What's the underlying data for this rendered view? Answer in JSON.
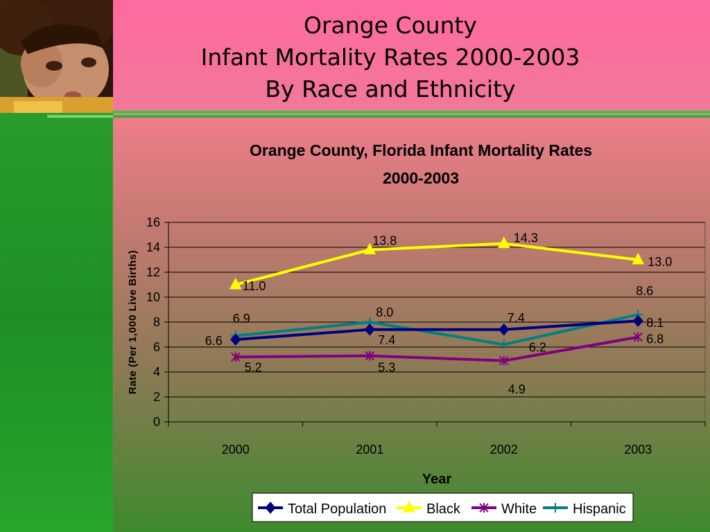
{
  "slide": {
    "title_lines": [
      "Orange County",
      "Infant Mortality Rates 2000-2003",
      "By Race and Ethnicity"
    ]
  },
  "colors": {
    "total_population": "#00007f",
    "black": "#ffff00",
    "white": "#800080",
    "hispanic": "#008080",
    "gridline": "#000000"
  },
  "chart_data": {
    "type": "line",
    "title": "Orange County, Florida Infant Mortality Rates",
    "subtitle": "2000-2003",
    "xlabel": "Year",
    "ylabel": "Rate (Per 1,000 Live Births)",
    "categories": [
      "2000",
      "2001",
      "2002",
      "2003"
    ],
    "ylim": [
      0,
      16
    ],
    "yticks": [
      0,
      2,
      4,
      6,
      8,
      10,
      12,
      14,
      16
    ],
    "grid": true,
    "legend_position": "bottom",
    "series": [
      {
        "name": "Total Population",
        "marker": "diamond",
        "values": [
          6.6,
          7.4,
          7.4,
          8.1
        ],
        "labels": [
          "6.6",
          "7.4",
          "7.4",
          "8.1"
        ]
      },
      {
        "name": "Black",
        "marker": "triangle",
        "values": [
          11.0,
          13.8,
          14.3,
          13.0
        ],
        "labels": [
          "11.0",
          "13.8",
          "14.3",
          "13.0"
        ]
      },
      {
        "name": "White",
        "marker": "asterisk",
        "values": [
          5.2,
          5.3,
          4.9,
          6.8
        ],
        "labels": [
          "5.2",
          "5.3",
          "4.9",
          "6.8"
        ]
      },
      {
        "name": "Hispanic",
        "marker": "plus",
        "values": [
          6.9,
          8.0,
          6.2,
          8.6
        ],
        "labels": [
          "6.9",
          "8.0",
          "6.2",
          "8.6"
        ]
      }
    ]
  }
}
